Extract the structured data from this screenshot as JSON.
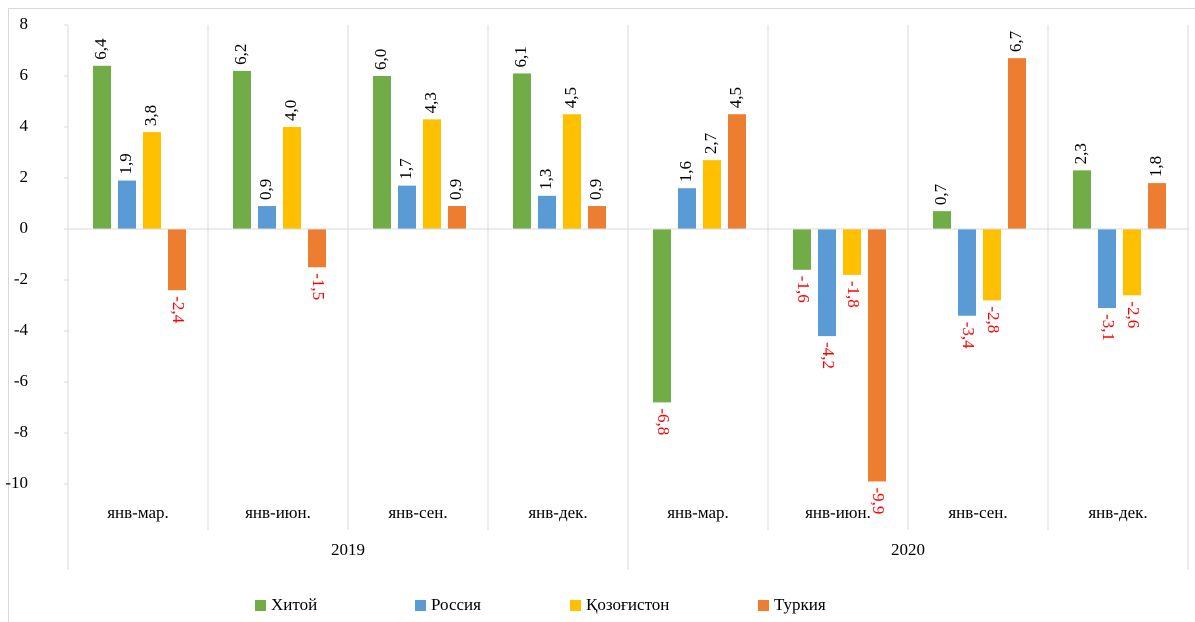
{
  "chart_data": {
    "type": "bar",
    "groups": [
      {
        "name": "2019",
        "categories": [
          "янв-мар.",
          "янв-июн.",
          "янв-сен.",
          "янв-дек."
        ]
      },
      {
        "name": "2020",
        "categories": [
          "янв-мар.",
          "янв-июн.",
          "янв-сен.",
          "янв-дек."
        ]
      }
    ],
    "series": [
      {
        "name": "Хитой",
        "color": "#70ad47",
        "values": [
          6.4,
          6.2,
          6.0,
          6.1,
          -6.8,
          -1.6,
          0.7,
          2.3
        ],
        "value_labels": [
          "6,4",
          "6,2",
          "6,0",
          "6,1",
          "-6,8",
          "-1,6",
          "0,7",
          "2,3"
        ]
      },
      {
        "name": "Россия",
        "color": "#5b9bd5",
        "values": [
          1.9,
          0.9,
          1.7,
          1.3,
          1.6,
          -4.2,
          -3.4,
          -3.1
        ],
        "value_labels": [
          "1,9",
          "0,9",
          "1,7",
          "1,3",
          "1,6",
          "-4,2",
          "-3,4",
          "-3,1"
        ]
      },
      {
        "name": "Қозоғистон",
        "color": "#ffc000",
        "values": [
          3.8,
          4.0,
          4.3,
          4.5,
          2.7,
          -1.8,
          -2.8,
          -2.6
        ],
        "value_labels": [
          "3,8",
          "4,0",
          "4,3",
          "4,5",
          "2,7",
          "-1,8",
          "-2,8",
          "-2,6"
        ]
      },
      {
        "name": "Туркия",
        "color": "#ed7d31",
        "values": [
          -2.4,
          -1.5,
          0.9,
          0.9,
          4.5,
          -9.9,
          6.7,
          1.8
        ],
        "value_labels": [
          "-2,4",
          "-1,5",
          "0,9",
          "0,9",
          "4,5",
          "-9,9",
          "6,7",
          "1,8"
        ]
      }
    ],
    "negative_label_color": "#ff0000",
    "ylim": [
      -10,
      8
    ],
    "yticks": [
      -10,
      -8,
      -6,
      -4,
      -2,
      0,
      2,
      4,
      6,
      8
    ],
    "legend": "bottom"
  }
}
